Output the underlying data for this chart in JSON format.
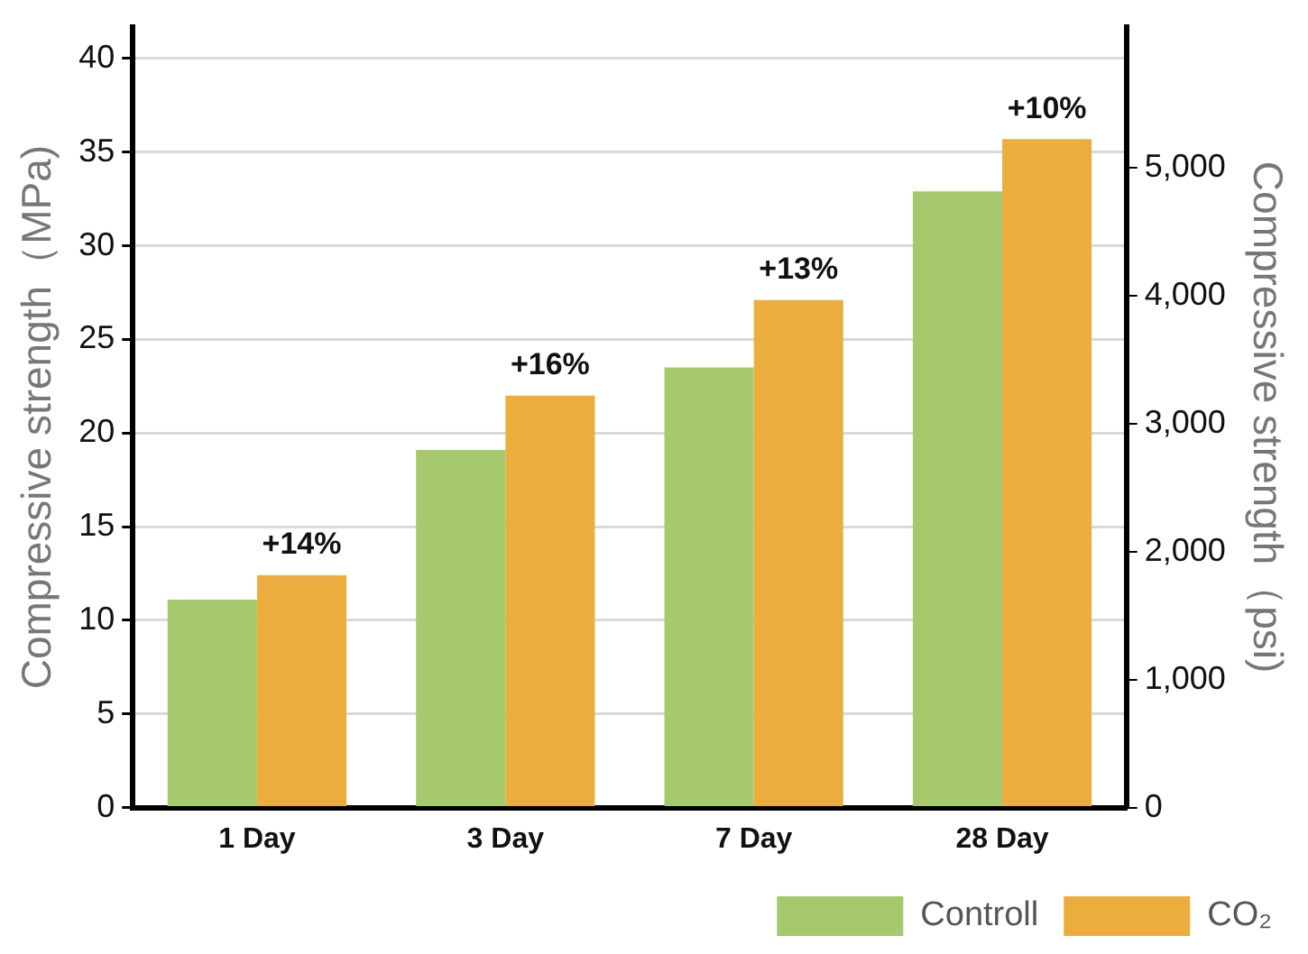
{
  "chart_data": {
    "type": "bar",
    "categories": [
      "1 Day",
      "3 Day",
      "7 Day",
      "28 Day"
    ],
    "series": [
      {
        "name": "Controll",
        "color": "#a6c96e",
        "values": [
          11.1,
          19.1,
          23.5,
          32.9
        ]
      },
      {
        "name": "CO₂",
        "color": "#ebae3e",
        "values": [
          12.4,
          22.0,
          27.1,
          35.7
        ]
      }
    ],
    "ylabel": "Compressive strength（MPa)",
    "y2label": "Compressive strength（psi)",
    "ylim": [
      0,
      41.7
    ],
    "yticks": [
      0,
      5,
      10,
      15,
      20,
      25,
      30,
      35,
      40
    ],
    "y2lim": [
      0,
      6100
    ],
    "y2ticks": [
      {
        "value": 0,
        "label": "0"
      },
      {
        "value": 1000,
        "label": "1,000"
      },
      {
        "value": 2000,
        "label": "2,000"
      },
      {
        "value": 3000,
        "label": "3,000"
      },
      {
        "value": 4000,
        "label": "4,000"
      },
      {
        "value": 5000,
        "label": "5,000"
      }
    ],
    "annotations": [
      {
        "text": "+14%",
        "x": "1 Day",
        "y": 12.4
      },
      {
        "text": "+16%",
        "x": "3 Day",
        "y": 22.0
      },
      {
        "text": "+13%",
        "x": "7 Day",
        "y": 27.1
      },
      {
        "text": "+10%",
        "x": "28 Day",
        "y": 35.7
      }
    ],
    "grid": "y",
    "legend": "bottom right"
  }
}
